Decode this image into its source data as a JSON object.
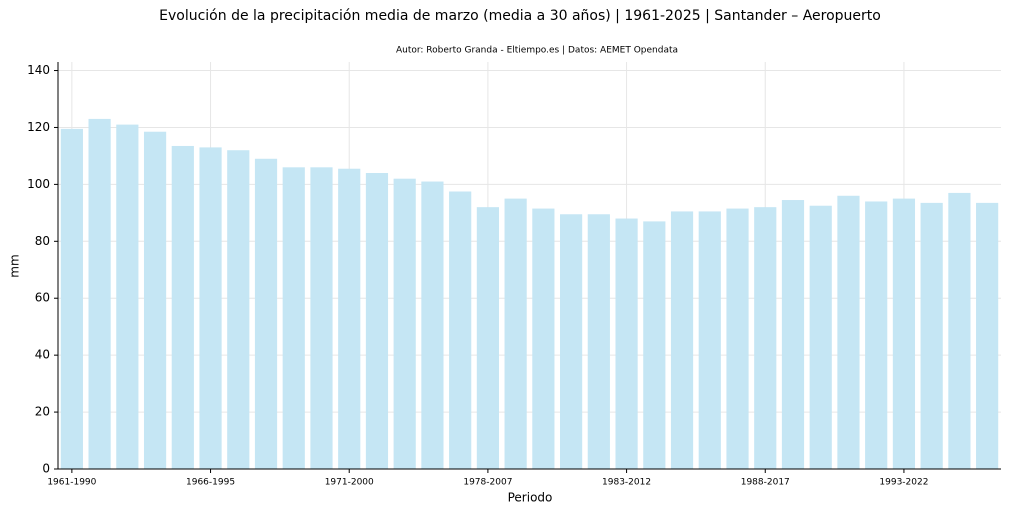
{
  "chart_data": {
    "type": "bar",
    "title": "Evolución de la precipitación media de marzo (media a 30 años) | 1961-2025 | Santander – Aeropuerto",
    "subtitle": "Autor: Roberto Granda - Eltiempo.es | Datos: AEMET Opendata",
    "x_label": "Periodo",
    "y_label": "mm",
    "categories": [
      "1961-1990",
      null,
      null,
      null,
      null,
      "1966-1995",
      null,
      null,
      null,
      null,
      "1971-2000",
      null,
      null,
      null,
      null,
      "1978-2007",
      null,
      null,
      null,
      null,
      "1983-2012",
      null,
      null,
      null,
      null,
      "1988-2017",
      null,
      null,
      null,
      null,
      "1993-2022",
      null,
      null,
      null
    ],
    "values": [
      119.5,
      123,
      121,
      118.5,
      113.5,
      113,
      112,
      109,
      106,
      106,
      105.5,
      104,
      102,
      101,
      97.5,
      92,
      95,
      91.5,
      89.5,
      89.5,
      88,
      87,
      90.5,
      90.5,
      91.5,
      92,
      94.5,
      92.5,
      96,
      94,
      95,
      93.5,
      97,
      93.5
    ],
    "color": "#c5e6f4",
    "ylim": [
      0,
      143
    ],
    "yticks": [
      0,
      20,
      40,
      60,
      80,
      100,
      120,
      140
    ],
    "grid": true
  }
}
